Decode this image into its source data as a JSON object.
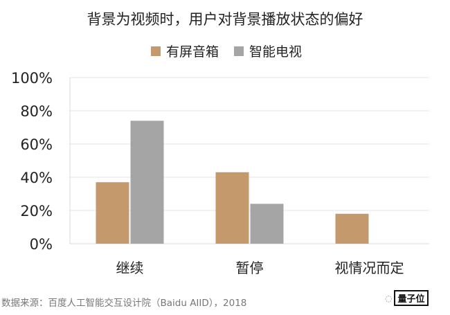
{
  "chart_data": {
    "type": "bar",
    "title": "背景为视频时，用户对背景播放状态的偏好",
    "categories": [
      "继续",
      "暂停",
      "视情况而定"
    ],
    "series": [
      {
        "name": "有屏音箱",
        "color": "#c49a6c",
        "values": [
          37,
          43,
          18
        ]
      },
      {
        "name": "智能电视",
        "color": "#a5a5a5",
        "values": [
          74,
          24,
          null
        ]
      }
    ],
    "ylim": [
      0,
      100
    ],
    "yticks": [
      "0%",
      "20%",
      "40%",
      "60%",
      "80%",
      "100%"
    ],
    "grid": true,
    "legend_position": "top-center",
    "xlabel": "",
    "ylabel": ""
  },
  "source": "数据来源：百度人工智能交互设计院（Baidu AIID），2018",
  "watermark": "量子位"
}
